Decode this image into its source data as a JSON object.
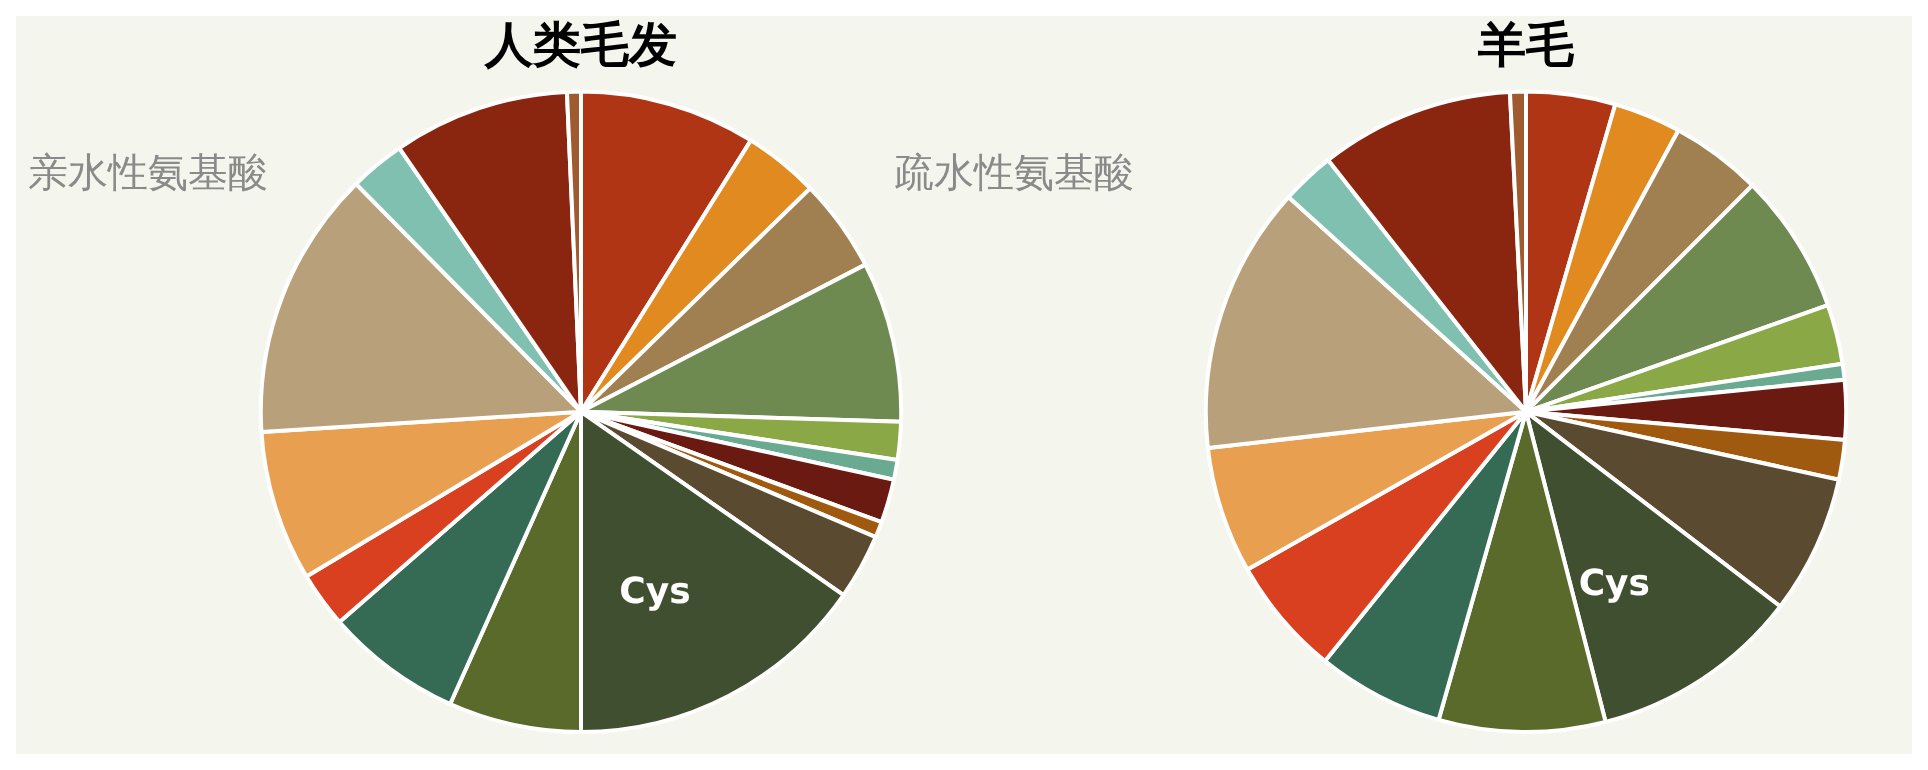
{
  "chart_data": [
    {
      "type": "pie",
      "title": "人类毛发",
      "categories": [
        null,
        null,
        null,
        null,
        null,
        null,
        null,
        null,
        null,
        "Cys",
        null,
        null,
        null,
        null,
        null,
        null,
        null,
        null
      ],
      "values": [
        8.9,
        3.8,
        4.7,
        8.1,
        1.9,
        1.0,
        2.2,
        0.8,
        3.3,
        15.3,
        6.7,
        6.9,
        2.8,
        7.6,
        13.6,
        2.8,
        8.9,
        0.7
      ],
      "colors": [
        "#b03515",
        "#e08a20",
        "#a08050",
        "#6f8a50",
        "#8aa845",
        "#6aaa90",
        "#6a1a10",
        "#a05a10",
        "#5a4a30",
        "#3f4f30",
        "#5a6a2a",
        "#356a55",
        "#d84020",
        "#e8a050",
        "#b8a07a",
        "#80c0b0",
        "#8a2510",
        "#a05a30"
      ],
      "annotations": [
        "亲水性氨基酸",
        "疏水性氨基酸"
      ],
      "legend": false
    },
    {
      "type": "pie",
      "title": "羊毛",
      "categories": [
        null,
        null,
        null,
        null,
        null,
        null,
        null,
        null,
        null,
        "Cys",
        null,
        null,
        null,
        null,
        null,
        null,
        null,
        null
      ],
      "values": [
        4.5,
        3.4,
        4.6,
        7.1,
        3.0,
        0.8,
        3.0,
        2.0,
        7.0,
        10.6,
        8.4,
        6.4,
        6.0,
        6.4,
        13.5,
        2.7,
        9.8,
        0.8
      ],
      "colors": [
        "#b03515",
        "#e08a20",
        "#a08050",
        "#6f8a50",
        "#8aa845",
        "#6aaa90",
        "#6a1a10",
        "#a05a10",
        "#5a4a30",
        "#3f4f30",
        "#5a6a2a",
        "#356a55",
        "#d84020",
        "#e8a050",
        "#b8a07a",
        "#80c0b0",
        "#8a2510",
        "#a05a30"
      ],
      "legend": false
    }
  ]
}
